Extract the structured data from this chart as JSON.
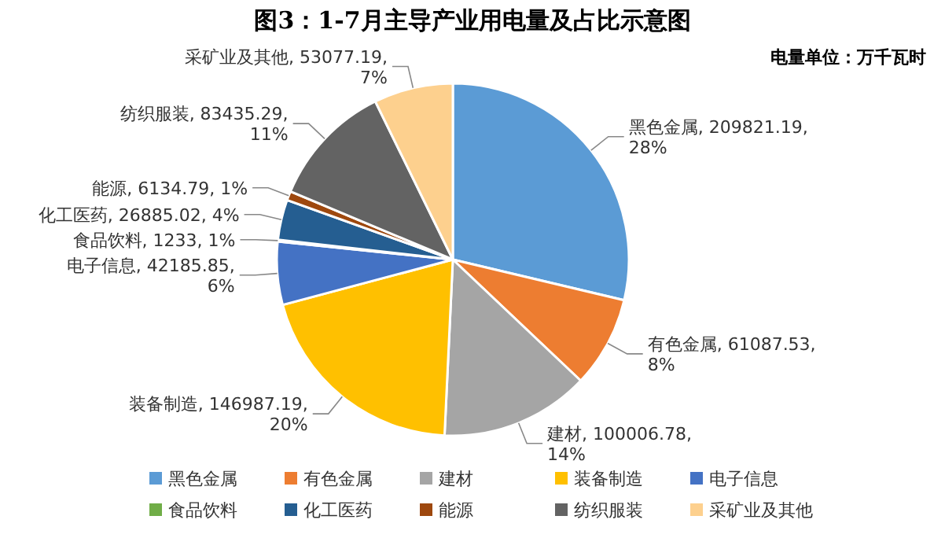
{
  "chart_data": {
    "type": "pie",
    "title": "图3：1-7月主导产业用电量及占比示意图",
    "annotations": [
      "电量单位：万千瓦时"
    ],
    "categories": [
      "黑色金属",
      "有色金属",
      "建材",
      "装备制造",
      "电子信息",
      "食品饮料",
      "化工医药",
      "能源",
      "纺织服装",
      "采矿业及其他"
    ],
    "values": [
      209821.19,
      61087.53,
      100006.78,
      146987.19,
      42185.85,
      1233,
      26885.02,
      6134.79,
      83435.29,
      53077.19
    ],
    "value_labels": [
      "黑色金属, 209821.19, 28%",
      "有色金属, 61087.53, 8%",
      "建材, 100006.78, 14%",
      "装备制造, 146987.19, 20%",
      "电子信息, 42185.85, 6%",
      "食品饮料, 1233, 1%",
      "化工医药, 26885.02, 4%",
      "能源, 6134.79, 1%",
      "纺织服装, 83435.29, 11%",
      "采矿业及其他, 53077.19, 7%"
    ],
    "colors": [
      "#5b9bd5",
      "#ed7d31",
      "#a5a5a5",
      "#ffc000",
      "#4472c4",
      "#70ad47",
      "#255e91",
      "#9e480e",
      "#636363",
      "#fdd08e"
    ],
    "legend": "bottom"
  }
}
